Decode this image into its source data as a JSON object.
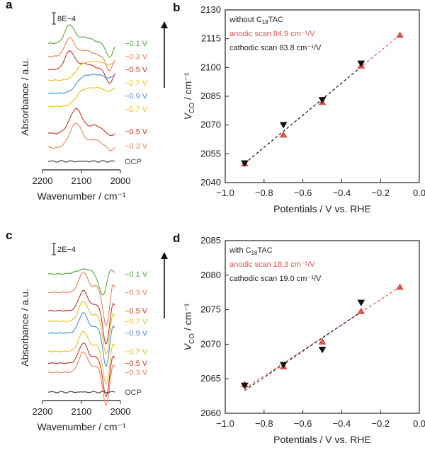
{
  "figure": {
    "panel_labels": [
      "a",
      "b",
      "c",
      "d"
    ]
  },
  "chart_data": [
    {
      "id": "a",
      "type": "line",
      "panel_label": "a",
      "xlabel": "Wavenumber / cm⁻¹",
      "ylabel": "Absorbance / a.u.",
      "xlim": [
        2200,
        2000
      ],
      "xticks": [
        "2200",
        "2100",
        "2000"
      ],
      "scale_bar": "8E−4",
      "traces": [
        {
          "name": "−0.1 V",
          "color": "#5aa844",
          "offset": 9,
          "kind": "a_high"
        },
        {
          "name": "−0.3 V",
          "color": "#e8825a",
          "offset": 8,
          "kind": "a_high"
        },
        {
          "name": "−0.5 V",
          "color": "#c0392b",
          "offset": 7,
          "kind": "a_high"
        },
        {
          "name": "−0.7 V",
          "color": "#e6c229",
          "offset": 6,
          "kind": "a_mid"
        },
        {
          "name": "−0.9 V",
          "color": "#4f8fd0",
          "offset": 5,
          "kind": "a_mid"
        },
        {
          "name": "−0.7 V",
          "color": "#e6c229",
          "offset": 4,
          "kind": "a_mid"
        },
        {
          "name": "−0.5 V",
          "color": "#c0392b",
          "offset": 2.3,
          "kind": "a_low"
        },
        {
          "name": "−0.3 V",
          "color": "#e8825a",
          "offset": 1.2,
          "kind": "a_low"
        },
        {
          "name": "OCP",
          "color": "#444444",
          "offset": 0,
          "kind": "flat"
        }
      ]
    },
    {
      "id": "b",
      "type": "scatter",
      "panel_label": "b",
      "xlabel": "Potentials / V vs. RHE",
      "ylabel_main": "V",
      "ylabel_sub": "CO",
      "ylabel_unit": " / cm⁻¹",
      "xlim": [
        -1.0,
        0.0
      ],
      "ylim": [
        2040,
        2130
      ],
      "xticks": [
        -1.0,
        -0.8,
        -0.6,
        -0.4,
        -0.2,
        0.0
      ],
      "xtick_labels": [
        "−1.0",
        "−0.8",
        "−0.6",
        "−0.4",
        "−0.2",
        "0.0"
      ],
      "yticks": [
        2040,
        2055,
        2070,
        2085,
        2100,
        2115,
        2130
      ],
      "ytick_labels": [
        "2040",
        "2055",
        "2070",
        "2085",
        "2100",
        "2115",
        "2130"
      ],
      "legend": {
        "title_main": "without C",
        "title_sub": "18",
        "title_tail": "TAC",
        "entries": [
          {
            "text": "anodic scan 84.9 cm⁻¹/V",
            "color": "#d9534f"
          },
          {
            "text": "cathodic scan 83.8 cm⁻¹/V",
            "color": "#222222"
          }
        ]
      },
      "series": [
        {
          "name": "anodic scan",
          "marker": "triangle-up",
          "color": "#d9534f",
          "x": [
            -0.9,
            -0.7,
            -0.5,
            -0.3,
            -0.1
          ],
          "y": [
            2050,
            2065,
            2082,
            2101,
            2117
          ],
          "fit": [
            2050.0,
            2117.0
          ]
        },
        {
          "name": "cathodic scan",
          "marker": "triangle-down",
          "color": "#111111",
          "x": [
            -0.9,
            -0.7,
            -0.5,
            -0.3
          ],
          "y": [
            2050,
            2070,
            2083,
            2102
          ],
          "fit": [
            2050.0,
            2100.3
          ]
        }
      ]
    },
    {
      "id": "c",
      "type": "line",
      "panel_label": "c",
      "xlabel": "Wavenumber / cm⁻¹",
      "ylabel": "Absorbance / a.u.",
      "xlim": [
        2200,
        2000
      ],
      "xticks": [
        "2200",
        "2100",
        "2000"
      ],
      "scale_bar": "2E−4",
      "traces": [
        {
          "name": "−0.1 V",
          "color": "#5aa844",
          "offset": 9,
          "kind": "c_top"
        },
        {
          "name": "−0.3 V",
          "color": "#e8825a",
          "offset": 7.6,
          "kind": "c_mid"
        },
        {
          "name": "−0.5 V",
          "color": "#c0392b",
          "offset": 6.2,
          "kind": "c_mid"
        },
        {
          "name": "−0.7 V",
          "color": "#e6c229",
          "offset": 5.4,
          "kind": "c_mid"
        },
        {
          "name": "−0.9 V",
          "color": "#4f8fd0",
          "offset": 4.5,
          "kind": "c_mid"
        },
        {
          "name": "−0.7 V",
          "color": "#e6c229",
          "offset": 3.1,
          "kind": "c_mid"
        },
        {
          "name": "−0.5 V",
          "color": "#c0392b",
          "offset": 2.2,
          "kind": "c_mid"
        },
        {
          "name": "−0.3 V",
          "color": "#e8825a",
          "offset": 1.5,
          "kind": "c_mid"
        },
        {
          "name": "OCP",
          "color": "#444444",
          "offset": 0,
          "kind": "flat"
        }
      ]
    },
    {
      "id": "d",
      "type": "scatter",
      "panel_label": "d",
      "xlabel": "Potentials / V vs. RHE",
      "ylabel_main": "V",
      "ylabel_sub": "CO",
      "ylabel_unit": " / cm⁻¹",
      "xlim": [
        -1.0,
        0.0
      ],
      "ylim": [
        2060,
        2085
      ],
      "xticks": [
        -1.0,
        -0.8,
        -0.6,
        -0.4,
        -0.2,
        0.0
      ],
      "xtick_labels": [
        "−1.0",
        "−0.8",
        "−0.6",
        "−0.4",
        "−0.2",
        "0.0"
      ],
      "yticks": [
        2060,
        2065,
        2070,
        2075,
        2080,
        2085
      ],
      "ytick_labels": [
        "2060",
        "2065",
        "2070",
        "2075",
        "2080",
        "2085"
      ],
      "legend": {
        "title_main": "with C",
        "title_sub": "18",
        "title_tail": "TAC",
        "entries": [
          {
            "text": "anodic scan 18.3 cm⁻¹/V",
            "color": "#d9534f"
          },
          {
            "text": "cathodic scan 19.0 cm⁻¹/V",
            "color": "#222222"
          }
        ]
      },
      "series": [
        {
          "name": "anodic scan",
          "marker": "triangle-up",
          "color": "#d9534f",
          "x": [
            -0.9,
            -0.7,
            -0.5,
            -0.3,
            -0.1
          ],
          "y": [
            2064.2,
            2066.8,
            2070.4,
            2074.8,
            2078.3
          ],
          "fit": [
            2063.6,
            2078.3
          ]
        },
        {
          "name": "cathodic scan",
          "marker": "triangle-down",
          "color": "#111111",
          "x": [
            -0.9,
            -0.7,
            -0.5,
            -0.3
          ],
          "y": [
            2064.0,
            2067.0,
            2069.2,
            2076.0
          ],
          "fit": [
            2063.3,
            2074.7
          ]
        }
      ]
    }
  ]
}
